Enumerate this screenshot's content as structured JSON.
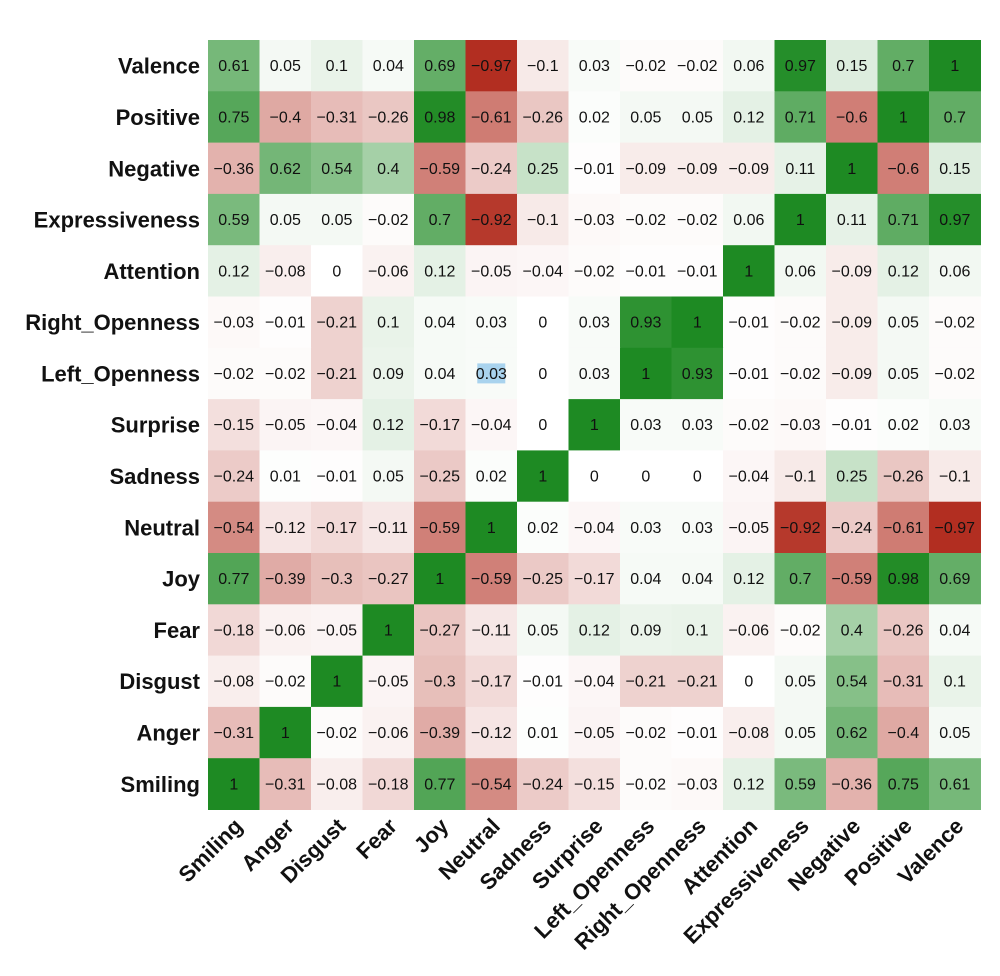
{
  "chart_data": {
    "type": "heatmap",
    "title": "",
    "xlabel": "",
    "ylabel": "",
    "x_labels": [
      "Smiling",
      "Anger",
      "Disgust",
      "Fear",
      "Joy",
      "Neutral",
      "Sadness",
      "Surprise",
      "Left_Openness",
      "Right_Openness",
      "Attention",
      "Expressiveness",
      "Negative",
      "Positive",
      "Valence"
    ],
    "y_labels": [
      "Valence",
      "Positive",
      "Negative",
      "Expressiveness",
      "Attention",
      "Right_Openness",
      "Left_Openness",
      "Surprise",
      "Sadness",
      "Neutral",
      "Joy",
      "Fear",
      "Disgust",
      "Anger",
      "Smiling"
    ],
    "values": [
      [
        0.61,
        0.05,
        0.1,
        0.04,
        0.69,
        -0.97,
        -0.1,
        0.03,
        -0.02,
        -0.02,
        0.06,
        0.97,
        0.15,
        0.7,
        1
      ],
      [
        0.75,
        -0.4,
        -0.31,
        -0.26,
        0.98,
        -0.61,
        -0.26,
        0.02,
        0.05,
        0.05,
        0.12,
        0.71,
        -0.6,
        1,
        0.7
      ],
      [
        -0.36,
        0.62,
        0.54,
        0.4,
        -0.59,
        -0.24,
        0.25,
        -0.01,
        -0.09,
        -0.09,
        -0.09,
        0.11,
        1,
        -0.6,
        0.15
      ],
      [
        0.59,
        0.05,
        0.05,
        -0.02,
        0.7,
        -0.92,
        -0.1,
        -0.03,
        -0.02,
        -0.02,
        0.06,
        1,
        0.11,
        0.71,
        0.97
      ],
      [
        0.12,
        -0.08,
        0,
        -0.06,
        0.12,
        -0.05,
        -0.04,
        -0.02,
        -0.01,
        -0.01,
        1,
        0.06,
        -0.09,
        0.12,
        0.06
      ],
      [
        -0.03,
        -0.01,
        -0.21,
        0.1,
        0.04,
        0.03,
        0,
        0.03,
        0.93,
        1,
        -0.01,
        -0.02,
        -0.09,
        0.05,
        -0.02
      ],
      [
        -0.02,
        -0.02,
        -0.21,
        0.09,
        0.04,
        0.03,
        0,
        0.03,
        1,
        0.93,
        -0.01,
        -0.02,
        -0.09,
        0.05,
        -0.02
      ],
      [
        -0.15,
        -0.05,
        -0.04,
        0.12,
        -0.17,
        -0.04,
        0,
        1,
        0.03,
        0.03,
        -0.02,
        -0.03,
        -0.01,
        0.02,
        0.03
      ],
      [
        -0.24,
        0.01,
        -0.01,
        0.05,
        -0.25,
        0.02,
        1,
        0,
        0,
        0,
        -0.04,
        -0.1,
        0.25,
        -0.26,
        -0.1
      ],
      [
        -0.54,
        -0.12,
        -0.17,
        -0.11,
        -0.59,
        1,
        0.02,
        -0.04,
        0.03,
        0.03,
        -0.05,
        -0.92,
        -0.24,
        -0.61,
        -0.97
      ],
      [
        0.77,
        -0.39,
        -0.3,
        -0.27,
        1,
        -0.59,
        -0.25,
        -0.17,
        0.04,
        0.04,
        0.12,
        0.7,
        -0.59,
        0.98,
        0.69
      ],
      [
        -0.18,
        -0.06,
        -0.05,
        1,
        -0.27,
        -0.11,
        0.05,
        0.12,
        0.09,
        0.1,
        -0.06,
        -0.02,
        0.4,
        -0.26,
        0.04
      ],
      [
        -0.08,
        -0.02,
        1,
        -0.05,
        -0.3,
        -0.17,
        -0.01,
        -0.04,
        -0.21,
        -0.21,
        0,
        0.05,
        0.54,
        -0.31,
        0.1
      ],
      [
        -0.31,
        1,
        -0.02,
        -0.06,
        -0.39,
        -0.12,
        0.01,
        -0.05,
        -0.02,
        -0.01,
        -0.08,
        0.05,
        0.62,
        -0.4,
        0.05
      ],
      [
        1,
        -0.31,
        -0.08,
        -0.18,
        0.77,
        -0.54,
        -0.24,
        -0.15,
        -0.02,
        -0.03,
        0.12,
        0.59,
        -0.36,
        0.75,
        0.61
      ]
    ],
    "value_range": [
      -1,
      1
    ],
    "colors": {
      "positive": "#1e8a23",
      "negative": "#b0281a",
      "neutral": "#ffffff",
      "highlight": "#a9d3ee"
    },
    "highlighted_cells": [
      {
        "row": 6,
        "col": 5
      }
    ],
    "legend": "none",
    "grid": false
  }
}
